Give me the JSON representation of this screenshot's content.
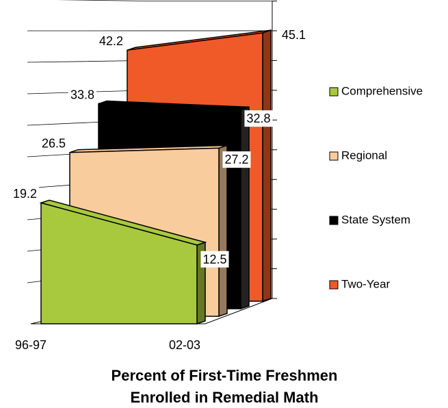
{
  "chart_data": {
    "type": "area3d",
    "title": [
      "Percent of First-Time Freshmen",
      "Enrolled in Remedial Math"
    ],
    "categories": [
      "96-97",
      "02-03"
    ],
    "series": [
      {
        "name": "Comprehensive",
        "color": "#a8c93e",
        "values": [
          19.2,
          12.5
        ]
      },
      {
        "name": "Regional",
        "color": "#f9cc9d",
        "values": [
          26.5,
          27.2
        ]
      },
      {
        "name": "State System",
        "color": "#000000",
        "values": [
          33.8,
          32.8
        ]
      },
      {
        "name": "Two-Year",
        "color": "#f05a28",
        "values": [
          42.2,
          45.1
        ]
      }
    ],
    "ylim": [
      0,
      50
    ],
    "yticks": [
      0,
      5,
      10,
      15,
      20,
      25,
      30,
      35,
      40,
      45,
      50
    ],
    "grid": true,
    "legend": "right"
  }
}
